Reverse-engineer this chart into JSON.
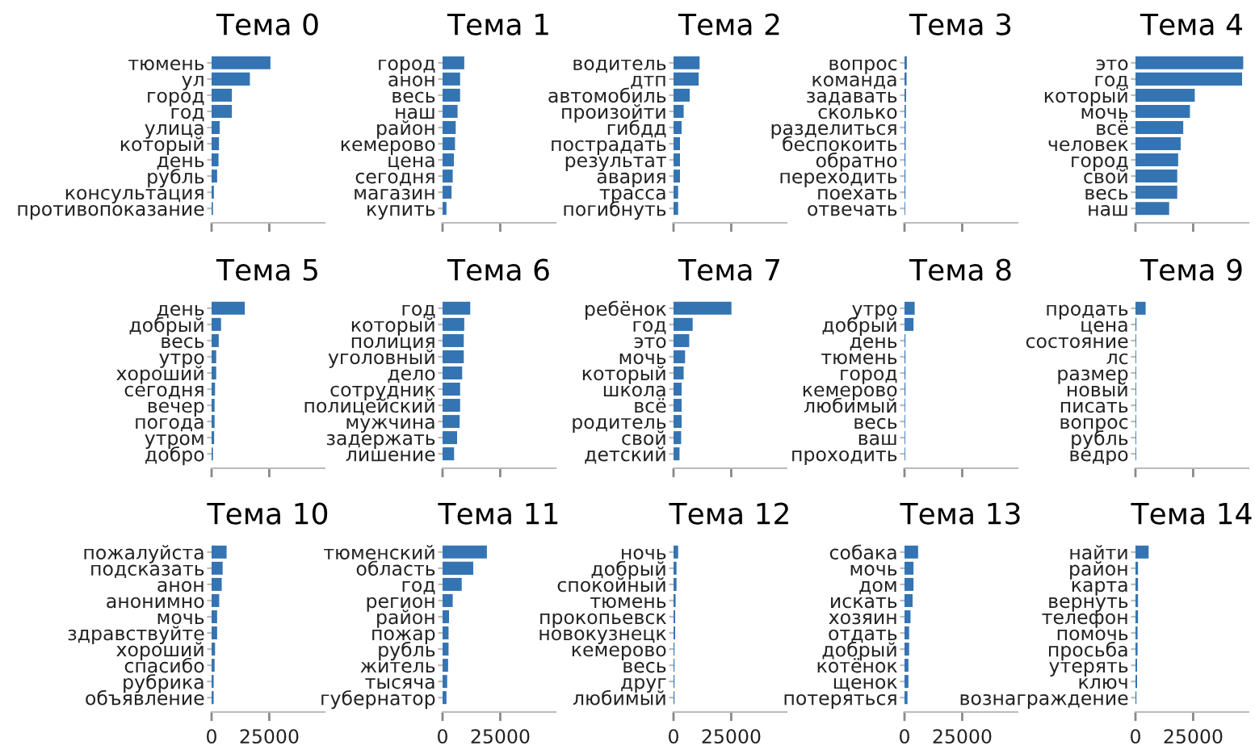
{
  "chart_data": [
    {
      "type": "bar",
      "orientation": "horizontal",
      "title": "Тема 0",
      "categories": [
        "тюмень",
        "ул",
        "город",
        "год",
        "улица",
        "который",
        "день",
        "рубль",
        "консультация",
        "противопоказание"
      ],
      "values": [
        25500,
        16600,
        8800,
        8800,
        3500,
        3200,
        3000,
        2400,
        1000,
        600
      ],
      "color": "#3574b2",
      "xlim": [
        0,
        49000
      ],
      "xticks": [
        0,
        25000
      ],
      "tick_labels": "y",
      "grid": false
    },
    {
      "type": "bar",
      "orientation": "horizontal",
      "title": "Тема 1",
      "categories": [
        "город",
        "анон",
        "весь",
        "наш",
        "район",
        "кемерово",
        "цена",
        "сегодня",
        "магазин",
        "купить"
      ],
      "values": [
        9400,
        7600,
        7600,
        6500,
        5700,
        5400,
        4900,
        4400,
        3900,
        1700
      ],
      "color": "#3574b2",
      "xlim": [
        0,
        49000
      ],
      "xticks": [
        0,
        25000
      ],
      "tick_labels": "y",
      "grid": false
    },
    {
      "type": "bar",
      "orientation": "horizontal",
      "title": "Тема 2",
      "categories": [
        "водитель",
        "дтп",
        "автомобиль",
        "произойти",
        "гибдд",
        "пострадать",
        "результат",
        "авария",
        "трасса",
        "погибнуть"
      ],
      "values": [
        11300,
        10900,
        7000,
        4400,
        3500,
        2800,
        2800,
        2800,
        2000,
        2000
      ],
      "color": "#3574b2",
      "xlim": [
        0,
        49000
      ],
      "xticks": [
        0,
        25000
      ],
      "tick_labels": "y",
      "grid": false
    },
    {
      "type": "bar",
      "orientation": "horizontal",
      "title": "Тема 3",
      "categories": [
        "вопрос",
        "команда",
        "задавать",
        "сколько",
        "разделиться",
        "беспокоить",
        "обратно",
        "переходить",
        "поехать",
        "отвечать"
      ],
      "values": [
        1000,
        900,
        700,
        600,
        500,
        500,
        400,
        400,
        400,
        300
      ],
      "color": "#3574b2",
      "xlim": [
        0,
        49000
      ],
      "xticks": [
        0,
        25000
      ],
      "tick_labels": "y",
      "grid": false
    },
    {
      "type": "bar",
      "orientation": "horizontal",
      "title": "Тема 4",
      "categories": [
        "это",
        "год",
        "который",
        "мочь",
        "всё",
        "человек",
        "город",
        "свой",
        "весь",
        "наш"
      ],
      "values": [
        46700,
        46200,
        25700,
        23600,
        20700,
        19600,
        18500,
        18100,
        18100,
        14600
      ],
      "color": "#3574b2",
      "xlim": [
        0,
        49000
      ],
      "xticks": [
        0,
        25000
      ],
      "tick_labels": "y",
      "grid": false
    },
    {
      "type": "bar",
      "orientation": "horizontal",
      "title": "Тема 5",
      "categories": [
        "день",
        "добрый",
        "весь",
        "утро",
        "хороший",
        "сегодня",
        "вечер",
        "погода",
        "утром",
        "добро"
      ],
      "values": [
        14400,
        4100,
        3100,
        2000,
        2000,
        1500,
        1300,
        1300,
        1100,
        600
      ],
      "color": "#3574b2",
      "xlim": [
        0,
        49000
      ],
      "xticks": [
        0,
        25000
      ],
      "tick_labels": "y",
      "grid": false
    },
    {
      "type": "bar",
      "orientation": "horizontal",
      "title": "Тема 6",
      "categories": [
        "год",
        "который",
        "полиция",
        "уголовный",
        "дело",
        "сотрудник",
        "полицейский",
        "мужчина",
        "задержать",
        "лишение"
      ],
      "values": [
        12000,
        9400,
        9200,
        9200,
        8500,
        7600,
        7600,
        7400,
        6300,
        5000
      ],
      "color": "#3574b2",
      "xlim": [
        0,
        49000
      ],
      "xticks": [
        0,
        25000
      ],
      "tick_labels": "y",
      "grid": false
    },
    {
      "type": "bar",
      "orientation": "horizontal",
      "title": "Тема 7",
      "categories": [
        "ребёнок",
        "год",
        "это",
        "мочь",
        "который",
        "школа",
        "всё",
        "родитель",
        "свой",
        "детский"
      ],
      "values": [
        25100,
        8300,
        6800,
        5000,
        4400,
        3500,
        3500,
        3500,
        3300,
        2600
      ],
      "color": "#3574b2",
      "xlim": [
        0,
        49000
      ],
      "xticks": [
        0,
        25000
      ],
      "tick_labels": "y",
      "grid": false
    },
    {
      "type": "bar",
      "orientation": "horizontal",
      "title": "Тема 8",
      "categories": [
        "утро",
        "добрый",
        "день",
        "тюмень",
        "город",
        "кемерово",
        "любимый",
        "весь",
        "ваш",
        "проходить"
      ],
      "values": [
        4400,
        3900,
        400,
        400,
        400,
        400,
        300,
        300,
        300,
        300
      ],
      "color": "#3574b2",
      "xlim": [
        0,
        49000
      ],
      "xticks": [
        0,
        25000
      ],
      "tick_labels": "y",
      "grid": false
    },
    {
      "type": "bar",
      "orientation": "horizontal",
      "title": "Тема 9",
      "categories": [
        "продать",
        "цена",
        "состояние",
        "лс",
        "размер",
        "новый",
        "писать",
        "вопрос",
        "рубль",
        "ведро"
      ],
      "values": [
        4400,
        400,
        300,
        300,
        300,
        300,
        300,
        300,
        300,
        300
      ],
      "color": "#3574b2",
      "xlim": [
        0,
        49000
      ],
      "xticks": [
        0,
        25000
      ],
      "tick_labels": "y",
      "grid": false
    },
    {
      "type": "bar",
      "orientation": "horizontal",
      "title": "Тема 10",
      "categories": [
        "пожалуйста",
        "подсказать",
        "анон",
        "анонимно",
        "мочь",
        "здравствуйте",
        "хороший",
        "спасибо",
        "рубрика",
        "объявление"
      ],
      "values": [
        6500,
        4800,
        4400,
        3300,
        2400,
        2400,
        1500,
        1300,
        900,
        900
      ],
      "color": "#3574b2",
      "xlim": [
        0,
        49000
      ],
      "xticks": [
        0,
        25000
      ],
      "grid": false
    },
    {
      "type": "bar",
      "orientation": "horizontal",
      "title": "Тема 11",
      "categories": [
        "тюменский",
        "область",
        "год",
        "регион",
        "район",
        "пожар",
        "рубль",
        "житель",
        "тысяча",
        "губернатор"
      ],
      "values": [
        19200,
        13300,
        8300,
        4400,
        2800,
        2600,
        2600,
        2400,
        2000,
        1700
      ],
      "color": "#3574b2",
      "xlim": [
        0,
        49000
      ],
      "xticks": [
        0,
        25000
      ],
      "grid": false
    },
    {
      "type": "bar",
      "orientation": "horizontal",
      "title": "Тема 12",
      "categories": [
        "ночь",
        "добрый",
        "спокойный",
        "тюмень",
        "прокопьевск",
        "новокузнецк",
        "кемерово",
        "весь",
        "друг",
        "любимый"
      ],
      "values": [
        2000,
        1300,
        1300,
        900,
        700,
        700,
        400,
        400,
        400,
        400
      ],
      "color": "#3574b2",
      "xlim": [
        0,
        49000
      ],
      "xticks": [
        0,
        25000
      ],
      "grid": false
    },
    {
      "type": "bar",
      "orientation": "horizontal",
      "title": "Тема 13",
      "categories": [
        "собака",
        "мочь",
        "дом",
        "искать",
        "хозяин",
        "отдать",
        "добрый",
        "котёнок",
        "щенок",
        "потеряться"
      ],
      "values": [
        5900,
        3900,
        3900,
        3500,
        2600,
        2000,
        2000,
        1700,
        1700,
        1300
      ],
      "color": "#3574b2",
      "xlim": [
        0,
        49000
      ],
      "xticks": [
        0,
        25000
      ],
      "grid": false
    },
    {
      "type": "bar",
      "orientation": "horizontal",
      "title": "Тема 14",
      "categories": [
        "найти",
        "район",
        "карта",
        "вернуть",
        "телефон",
        "помочь",
        "просьба",
        "утерять",
        "ключ",
        "вознаграждение"
      ],
      "values": [
        5700,
        1100,
        1100,
        1100,
        1100,
        900,
        900,
        700,
        700,
        400
      ],
      "color": "#3574b2",
      "xlim": [
        0,
        49000
      ],
      "xticks": [
        0,
        25000
      ],
      "grid": false
    }
  ]
}
